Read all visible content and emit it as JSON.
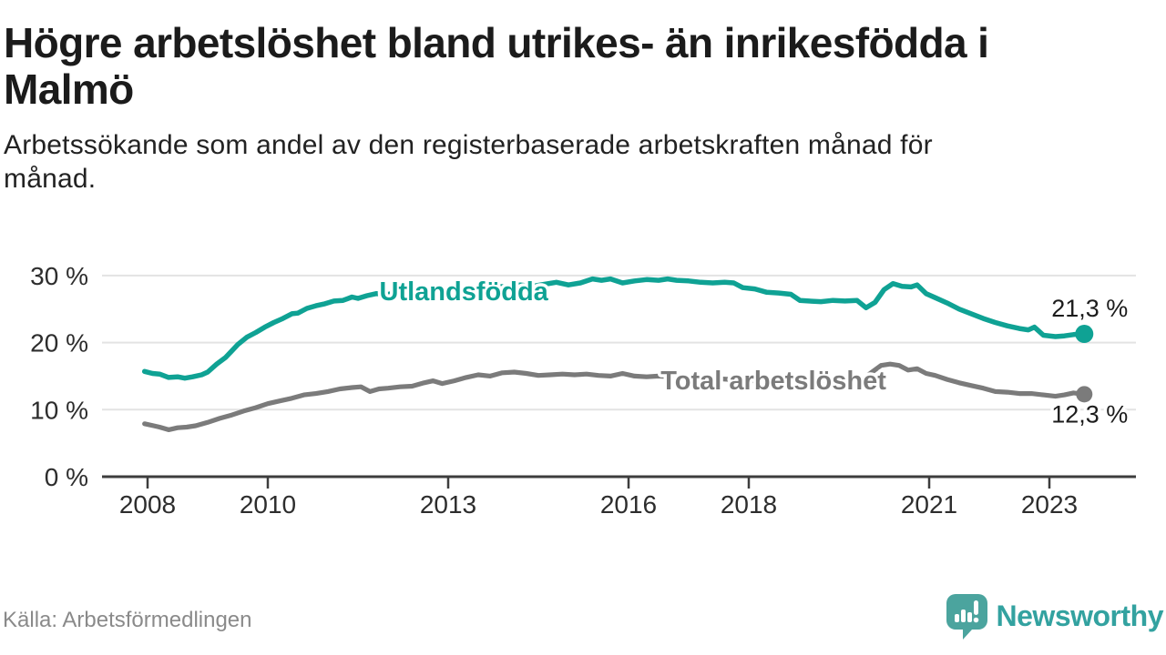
{
  "title": {
    "lines": [
      "Högre arbetslöshet bland utrikes- än inrikesfödda i",
      "Malmö"
    ],
    "full": "Högre arbetslöshet bland utrikes- än inrikesfödda i Malmö"
  },
  "subtitle": {
    "lines": [
      "Arbetssökande som andel av den registerbaserade arbetskraften månad för",
      "månad."
    ],
    "full": "Arbetssökande som andel av den registerbaserade arbetskraften månad för månad."
  },
  "footer": {
    "source": "Källa: Arbetsförmedlingen",
    "logo_text": "Newsworthy"
  },
  "colors": {
    "foreign_born_line": "#0fa294",
    "total_line": "#7b7b7b",
    "grid": "#e3e3e3",
    "axis": "#3d3d3d",
    "value_label": "#1c1c1c",
    "logo_teal": "#4ba49e",
    "logo_text_teal": "#33a2a0"
  },
  "chart_data": {
    "type": "line",
    "title": "Högre arbetslöshet bland utrikes- än inrikesfödda i Malmö",
    "xlabel": "",
    "ylabel": "",
    "grid": "horizontal",
    "legend_position": "inline-labels",
    "xlim": [
      2007.8,
      2024.4
    ],
    "ylim": [
      0,
      32
    ],
    "yticks": [
      {
        "value": 0,
        "label": "0 %"
      },
      {
        "value": 10,
        "label": "10 %"
      },
      {
        "value": 20,
        "label": "20 %"
      },
      {
        "value": 30,
        "label": "30 %"
      }
    ],
    "xticks": [
      {
        "value": 2008,
        "label": "2008"
      },
      {
        "value": 2010,
        "label": "2010"
      },
      {
        "value": 2013,
        "label": "2013"
      },
      {
        "value": 2016,
        "label": "2016"
      },
      {
        "value": 2018,
        "label": "2018"
      },
      {
        "value": 2021,
        "label": "2021"
      },
      {
        "value": 2023,
        "label": "2023"
      }
    ],
    "series": [
      {
        "name": "Utlandsfödda",
        "color": "#0fa294",
        "line_width": 5.5,
        "end_dot_radius": 10,
        "end_value_label": "21,3 %",
        "end_label_side": "above",
        "label_anchor": {
          "x": 2013.26,
          "y": 26.3
        },
        "points": [
          [
            2007.95,
            15.7
          ],
          [
            2008.08,
            15.4
          ],
          [
            2008.2,
            15.3
          ],
          [
            2008.35,
            14.8
          ],
          [
            2008.5,
            14.9
          ],
          [
            2008.62,
            14.7
          ],
          [
            2008.75,
            14.9
          ],
          [
            2008.9,
            15.2
          ],
          [
            2009.0,
            15.6
          ],
          [
            2009.15,
            16.8
          ],
          [
            2009.3,
            17.8
          ],
          [
            2009.5,
            19.7
          ],
          [
            2009.65,
            20.8
          ],
          [
            2009.8,
            21.5
          ],
          [
            2009.95,
            22.3
          ],
          [
            2010.1,
            23.0
          ],
          [
            2010.25,
            23.6
          ],
          [
            2010.4,
            24.3
          ],
          [
            2010.5,
            24.4
          ],
          [
            2010.65,
            25.1
          ],
          [
            2010.8,
            25.5
          ],
          [
            2010.95,
            25.8
          ],
          [
            2011.1,
            26.2
          ],
          [
            2011.25,
            26.3
          ],
          [
            2011.4,
            26.8
          ],
          [
            2011.5,
            26.6
          ],
          [
            2011.65,
            27.0
          ],
          [
            2011.8,
            27.3
          ],
          [
            2012.0,
            27.2
          ],
          [
            2012.2,
            27.6
          ],
          [
            2012.4,
            27.5
          ],
          [
            2012.6,
            27.9
          ],
          [
            2012.8,
            28.0
          ],
          [
            2013.0,
            27.9
          ],
          [
            2013.2,
            28.2
          ],
          [
            2013.4,
            28.0
          ],
          [
            2013.6,
            28.3
          ],
          [
            2013.8,
            28.4
          ],
          [
            2014.0,
            28.3
          ],
          [
            2014.2,
            28.6
          ],
          [
            2014.4,
            28.4
          ],
          [
            2014.6,
            28.7
          ],
          [
            2014.8,
            29.0
          ],
          [
            2015.0,
            28.6
          ],
          [
            2015.2,
            28.9
          ],
          [
            2015.4,
            29.5
          ],
          [
            2015.55,
            29.3
          ],
          [
            2015.7,
            29.5
          ],
          [
            2015.9,
            28.9
          ],
          [
            2016.1,
            29.2
          ],
          [
            2016.3,
            29.4
          ],
          [
            2016.5,
            29.3
          ],
          [
            2016.65,
            29.5
          ],
          [
            2016.8,
            29.3
          ],
          [
            2017.0,
            29.2
          ],
          [
            2017.2,
            29.0
          ],
          [
            2017.4,
            28.9
          ],
          [
            2017.6,
            29.0
          ],
          [
            2017.75,
            28.9
          ],
          [
            2017.9,
            28.2
          ],
          [
            2018.1,
            28.0
          ],
          [
            2018.3,
            27.5
          ],
          [
            2018.5,
            27.4
          ],
          [
            2018.7,
            27.2
          ],
          [
            2018.85,
            26.3
          ],
          [
            2019.0,
            26.2
          ],
          [
            2019.2,
            26.1
          ],
          [
            2019.4,
            26.3
          ],
          [
            2019.6,
            26.2
          ],
          [
            2019.8,
            26.3
          ],
          [
            2019.95,
            25.2
          ],
          [
            2020.1,
            26.0
          ],
          [
            2020.25,
            27.9
          ],
          [
            2020.4,
            28.8
          ],
          [
            2020.55,
            28.4
          ],
          [
            2020.7,
            28.3
          ],
          [
            2020.8,
            28.6
          ],
          [
            2020.95,
            27.3
          ],
          [
            2021.1,
            26.7
          ],
          [
            2021.3,
            25.9
          ],
          [
            2021.5,
            25.0
          ],
          [
            2021.7,
            24.3
          ],
          [
            2021.9,
            23.6
          ],
          [
            2022.1,
            23.0
          ],
          [
            2022.3,
            22.5
          ],
          [
            2022.5,
            22.1
          ],
          [
            2022.65,
            21.9
          ],
          [
            2022.75,
            22.3
          ],
          [
            2022.9,
            21.1
          ],
          [
            2023.1,
            20.9
          ],
          [
            2023.25,
            21.0
          ],
          [
            2023.4,
            21.2
          ],
          [
            2023.58,
            21.3
          ]
        ]
      },
      {
        "name": "Total arbetslöshet",
        "color": "#7b7b7b",
        "line_width": 5.2,
        "end_dot_radius": 9,
        "end_value_label": "12,3 %",
        "end_label_side": "below",
        "label_anchor": {
          "x": 2018.41,
          "y": 13.0
        },
        "points": [
          [
            2007.95,
            7.9
          ],
          [
            2008.1,
            7.6
          ],
          [
            2008.2,
            7.4
          ],
          [
            2008.35,
            7.0
          ],
          [
            2008.5,
            7.3
          ],
          [
            2008.65,
            7.4
          ],
          [
            2008.8,
            7.6
          ],
          [
            2009.0,
            8.1
          ],
          [
            2009.2,
            8.7
          ],
          [
            2009.4,
            9.2
          ],
          [
            2009.6,
            9.8
          ],
          [
            2009.8,
            10.3
          ],
          [
            2010.0,
            10.9
          ],
          [
            2010.2,
            11.3
          ],
          [
            2010.4,
            11.7
          ],
          [
            2010.6,
            12.2
          ],
          [
            2010.8,
            12.4
          ],
          [
            2011.0,
            12.7
          ],
          [
            2011.2,
            13.1
          ],
          [
            2011.4,
            13.3
          ],
          [
            2011.55,
            13.4
          ],
          [
            2011.7,
            12.7
          ],
          [
            2011.85,
            13.1
          ],
          [
            2012.0,
            13.2
          ],
          [
            2012.2,
            13.4
          ],
          [
            2012.4,
            13.5
          ],
          [
            2012.6,
            14.0
          ],
          [
            2012.75,
            14.3
          ],
          [
            2012.9,
            13.9
          ],
          [
            2013.1,
            14.3
          ],
          [
            2013.3,
            14.8
          ],
          [
            2013.5,
            15.2
          ],
          [
            2013.7,
            15.0
          ],
          [
            2013.9,
            15.5
          ],
          [
            2014.1,
            15.6
          ],
          [
            2014.3,
            15.4
          ],
          [
            2014.5,
            15.1
          ],
          [
            2014.7,
            15.2
          ],
          [
            2014.9,
            15.3
          ],
          [
            2015.1,
            15.2
          ],
          [
            2015.3,
            15.3
          ],
          [
            2015.5,
            15.1
          ],
          [
            2015.7,
            15.0
          ],
          [
            2015.9,
            15.4
          ],
          [
            2016.1,
            15.0
          ],
          [
            2016.3,
            14.9
          ],
          [
            2016.5,
            15.0
          ],
          [
            2016.7,
            14.9
          ],
          [
            2016.9,
            14.8
          ],
          [
            2017.1,
            14.7
          ],
          [
            2017.3,
            14.7
          ],
          [
            2017.5,
            14.6
          ],
          [
            2017.7,
            14.5
          ],
          [
            2017.9,
            14.4
          ],
          [
            2018.1,
            14.3
          ],
          [
            2018.3,
            14.2
          ],
          [
            2018.5,
            14.1
          ],
          [
            2018.7,
            14.0
          ],
          [
            2018.9,
            13.9
          ],
          [
            2019.1,
            13.8
          ],
          [
            2019.3,
            13.8
          ],
          [
            2019.5,
            13.9
          ],
          [
            2019.7,
            14.1
          ],
          [
            2019.9,
            14.6
          ],
          [
            2020.05,
            15.6
          ],
          [
            2020.2,
            16.6
          ],
          [
            2020.35,
            16.8
          ],
          [
            2020.5,
            16.6
          ],
          [
            2020.65,
            15.9
          ],
          [
            2020.8,
            16.1
          ],
          [
            2020.95,
            15.4
          ],
          [
            2021.1,
            15.1
          ],
          [
            2021.3,
            14.5
          ],
          [
            2021.5,
            14.0
          ],
          [
            2021.7,
            13.6
          ],
          [
            2021.9,
            13.2
          ],
          [
            2022.1,
            12.7
          ],
          [
            2022.3,
            12.6
          ],
          [
            2022.5,
            12.4
          ],
          [
            2022.7,
            12.4
          ],
          [
            2022.9,
            12.2
          ],
          [
            2023.1,
            12.0
          ],
          [
            2023.25,
            12.2
          ],
          [
            2023.4,
            12.5
          ],
          [
            2023.58,
            12.3
          ]
        ]
      }
    ]
  }
}
